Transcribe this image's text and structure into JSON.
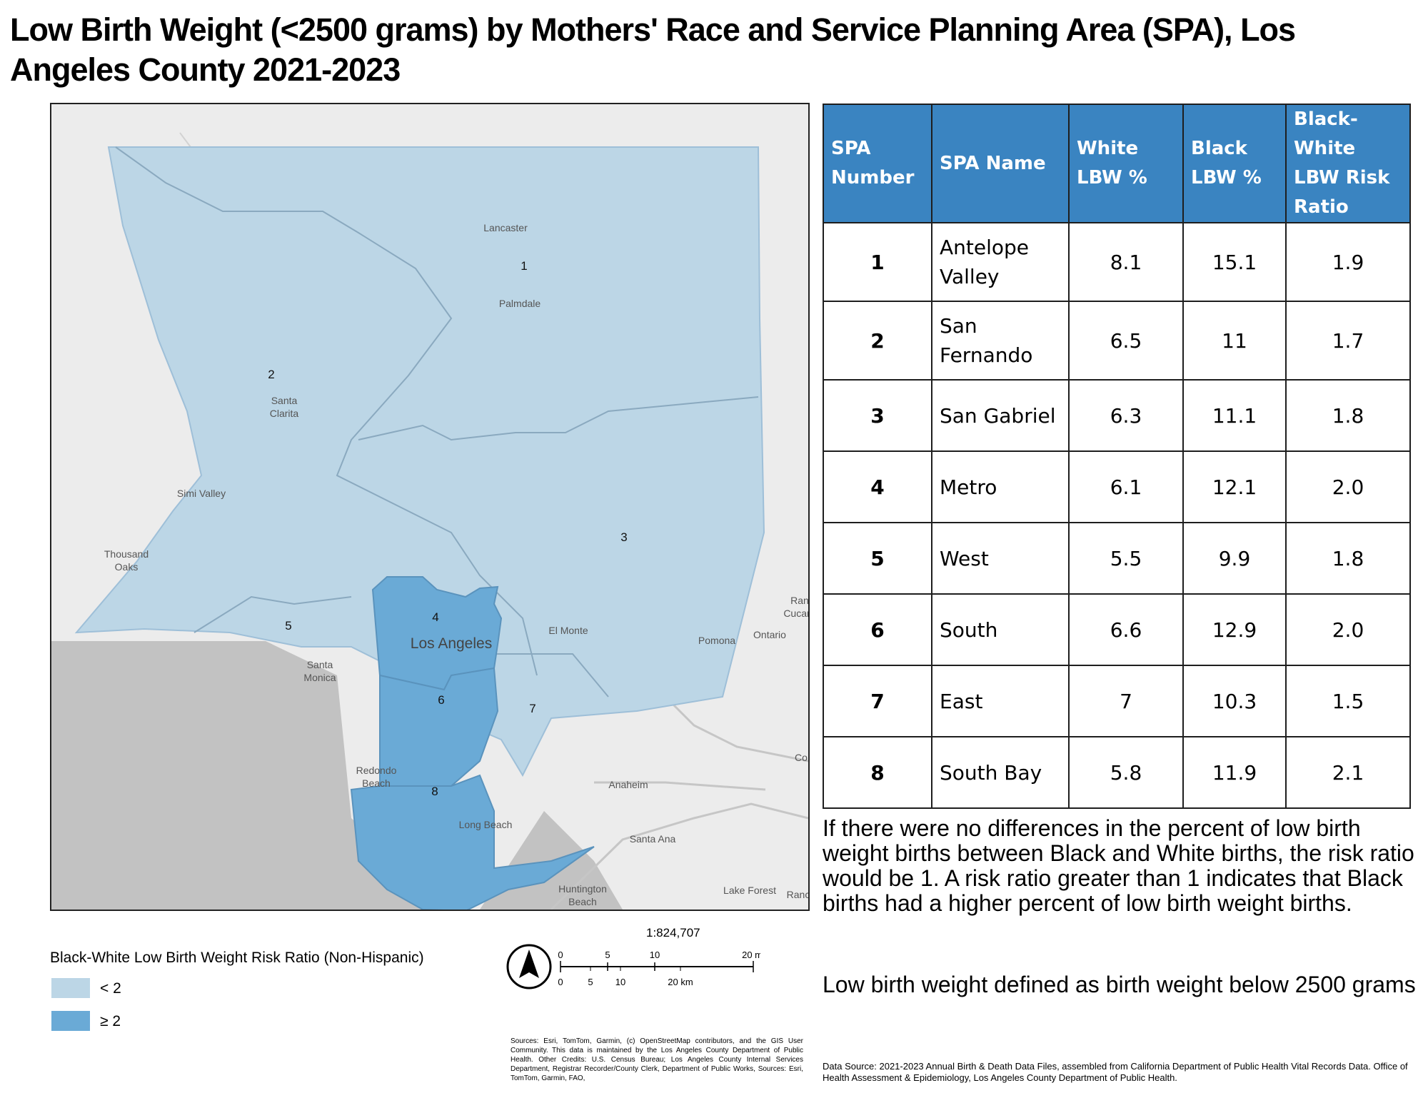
{
  "title": "Low Birth Weight (<2500 grams) by Mothers' Race and Service Planning Area (SPA), Los Angeles County 2021-2023",
  "table": {
    "headers": [
      "SPA Number",
      "SPA Name",
      "White LBW %",
      "Black LBW %",
      "Black-White LBW Risk Ratio"
    ],
    "rows": [
      {
        "spa": "1",
        "name": "Antelope Valley",
        "white": "8.1",
        "black": "15.1",
        "ratio": "1.9"
      },
      {
        "spa": "2",
        "name": "San Fernando",
        "white": "6.5",
        "black": "11",
        "ratio": "1.7"
      },
      {
        "spa": "3",
        "name": "San Gabriel",
        "white": "6.3",
        "black": "11.1",
        "ratio": "1.8"
      },
      {
        "spa": "4",
        "name": "Metro",
        "white": "6.1",
        "black": "12.1",
        "ratio": "2.0"
      },
      {
        "spa": "5",
        "name": "West",
        "white": "5.5",
        "black": "9.9",
        "ratio": "1.8"
      },
      {
        "spa": "6",
        "name": "South",
        "white": "6.6",
        "black": "12.9",
        "ratio": "2.0"
      },
      {
        "spa": "7",
        "name": "East",
        "white": "7",
        "black": "10.3",
        "ratio": "1.5"
      },
      {
        "spa": "8",
        "name": "South Bay",
        "white": "5.8",
        "black": "11.9",
        "ratio": "2.1"
      }
    ]
  },
  "notes": {
    "risk_ratio": "If there were no differences in the percent of low birth weight births between Black and White births, the risk ratio would be 1. A risk ratio greater than 1 indicates that Black births had a higher percent of low birth weight births.",
    "definition": "Low birth weight defined as birth weight below 2500 grams"
  },
  "data_source": "Data Source: 2021-2023 Annual Birth & Death Data Files, assembled from California Department of Public Health Vital Records Data. Office of Health Assessment & Epidemiology, Los Angeles County Department of Public Health.",
  "map_sources": "Sources: Esri, TomTom, Garmin, (c) OpenStreetMap contributors, and the GIS User Community. This data is maintained by the Los Angeles County Department of Public Health. Other Credits: U.S. Census Bureau; Los Angeles County Internal Services Department, Registrar Recorder/County Clerk, Department of Public Works, Sources: Esri, TomTom, Garmin, FAO,",
  "legend": {
    "title": "Black-White Low Birth Weight Risk Ratio (Non-Hispanic)",
    "items": [
      {
        "label": "< 2",
        "color": "#bcd6e6"
      },
      {
        "label": "≥ 2",
        "color": "#6aaad6"
      }
    ]
  },
  "scale": {
    "ratio": "1:824,707",
    "mi_ticks": [
      "0",
      "5",
      "10",
      "20 mi"
    ],
    "km_ticks": [
      "0",
      "5",
      "10",
      "20 km"
    ]
  },
  "map": {
    "spa_labels": [
      "1",
      "2",
      "3",
      "4",
      "5",
      "6",
      "7",
      "8"
    ],
    "places": {
      "lancaster": "Lancaster",
      "palmdale": "Palmdale",
      "santa_clarita_1": "Santa",
      "santa_clarita_2": "Clarita",
      "simi_valley": "Simi Valley",
      "thousand_oaks_1": "Thousand",
      "thousand_oaks_2": "Oaks",
      "el_monte": "El Monte",
      "los_angeles": "Los Angeles",
      "santa_monica_1": "Santa",
      "santa_monica_2": "Monica",
      "pomona": "Pomona",
      "ontario": "Ontario",
      "redondo_1": "Redondo",
      "redondo_2": "Beach",
      "anaheim": "Anaheim",
      "long_beach": "Long Beach",
      "santa_ana": "Santa Ana",
      "huntington_1": "Huntington",
      "huntington_2": "Beach",
      "lake_forest": "Lake Forest",
      "ran_cuca_1": "Ran",
      "ran_cuca_2": "Cucar",
      "co": "Co",
      "ranch": "Ranc"
    },
    "colors": {
      "low": "#bcd6e6",
      "high": "#6aaad6",
      "ocean": "#c2c2c2",
      "land": "#ececec"
    }
  }
}
